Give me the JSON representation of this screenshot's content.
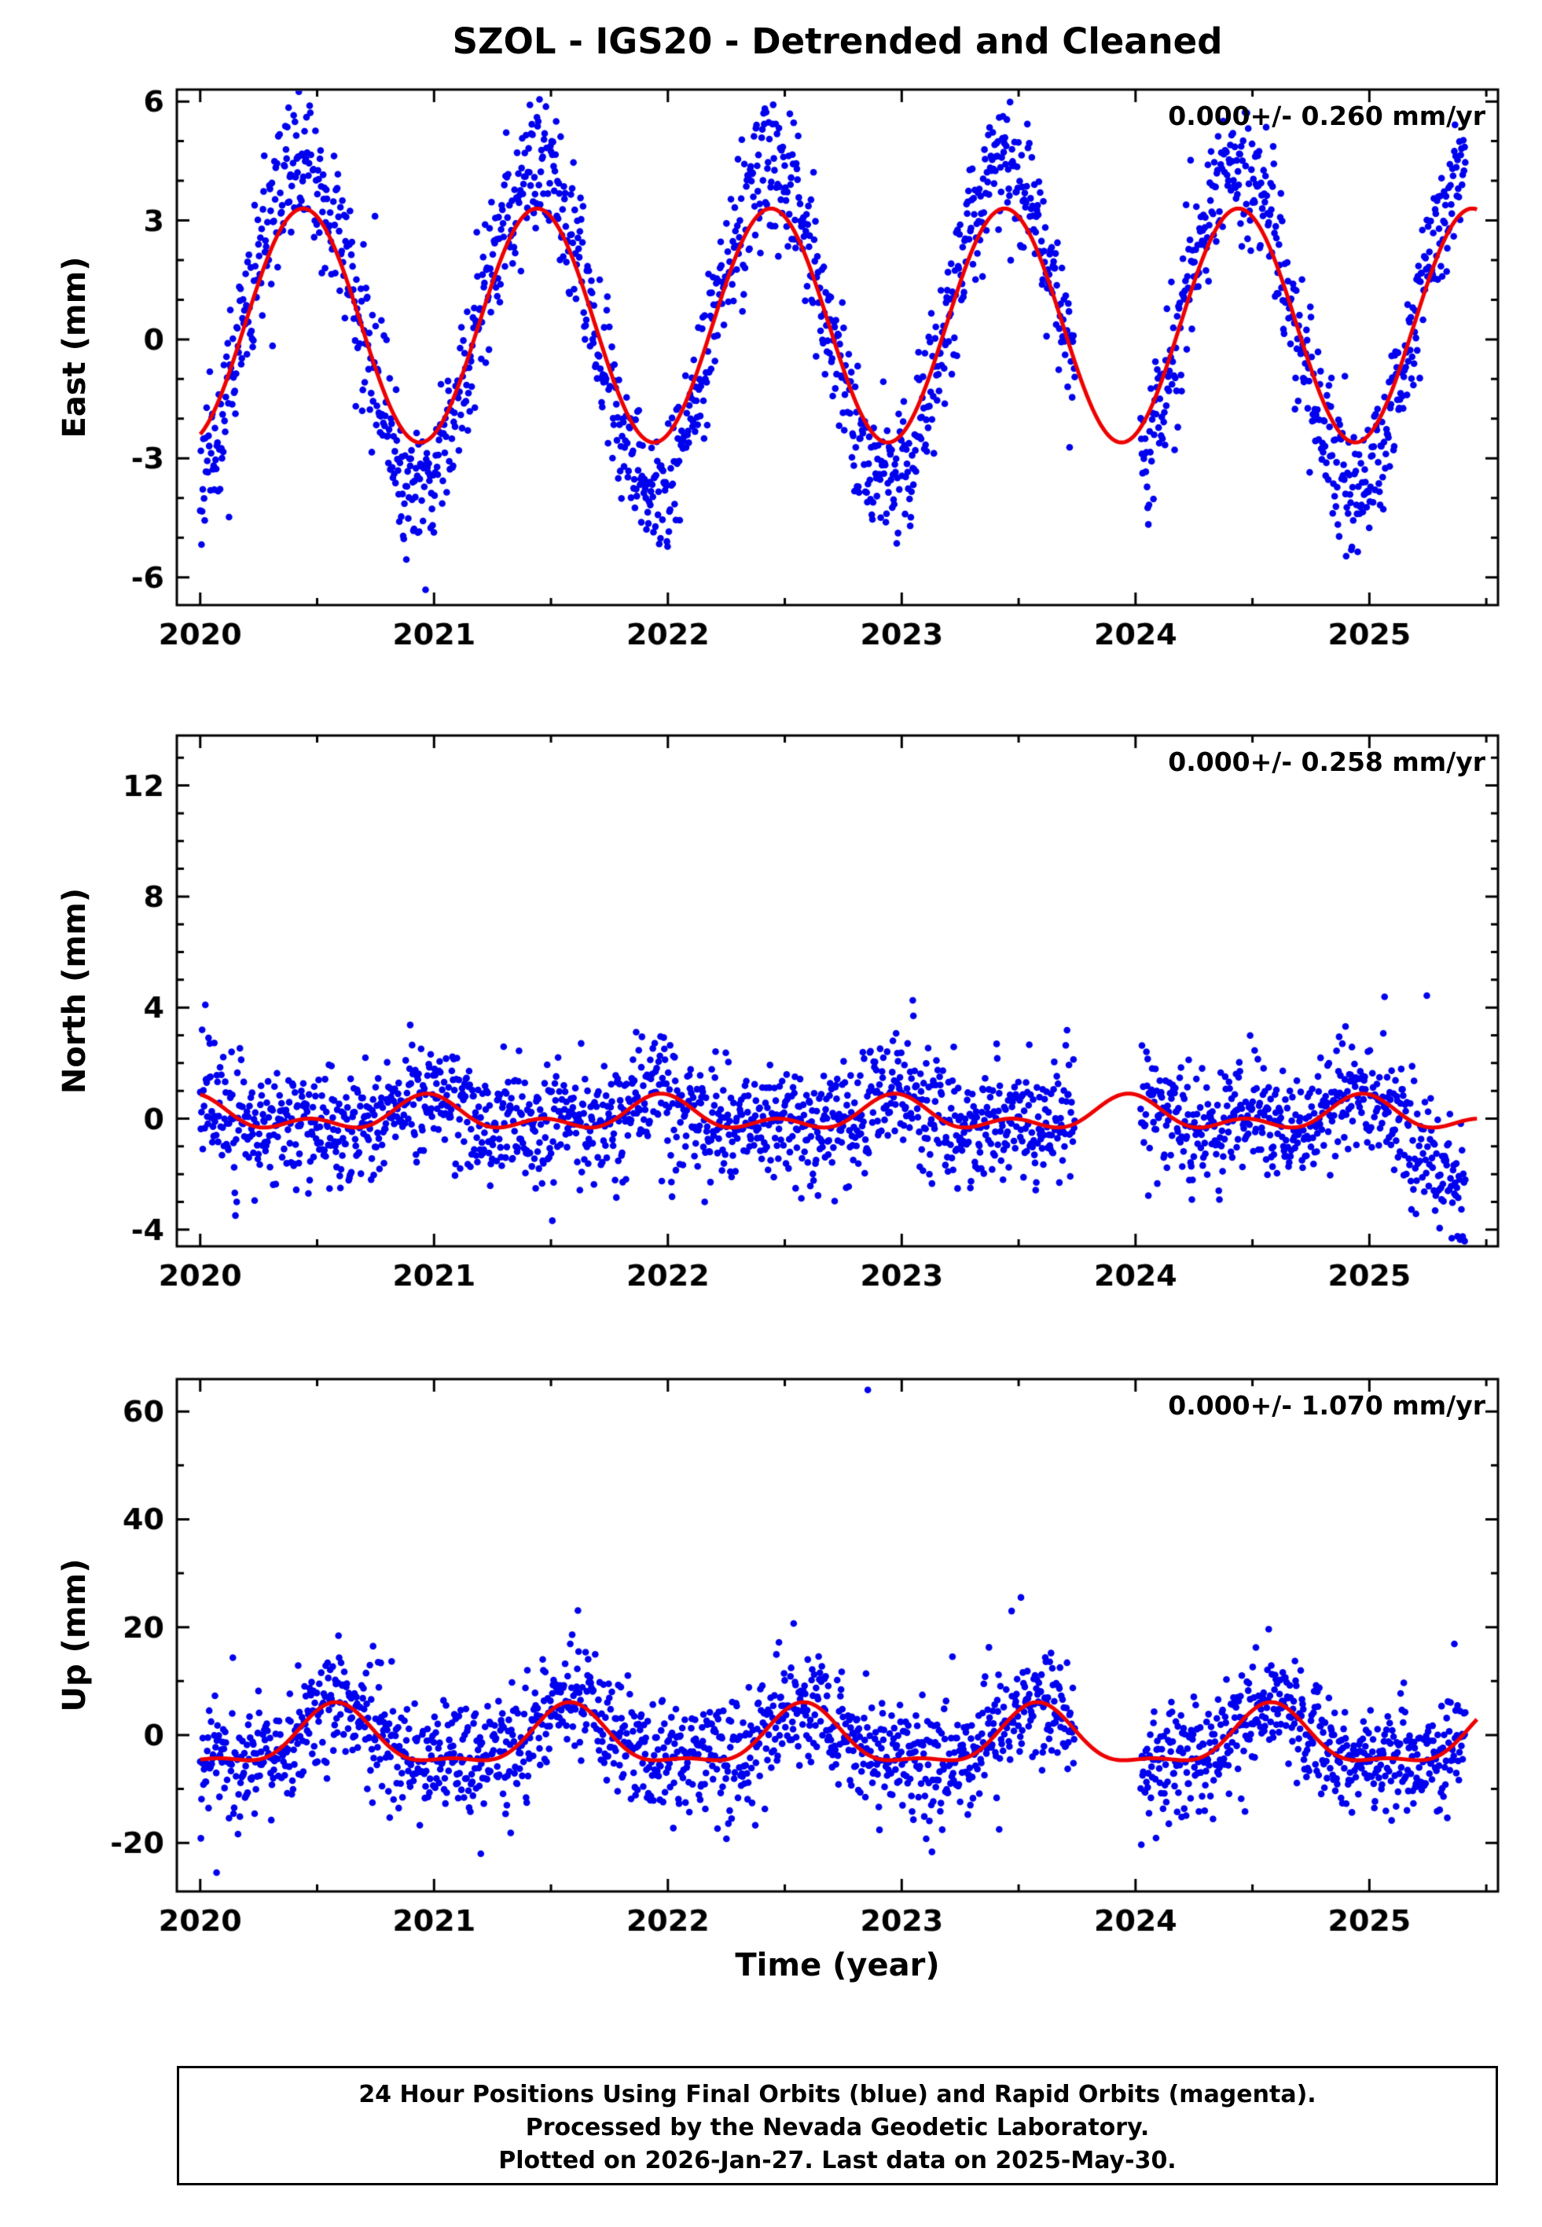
{
  "title": "SZOL - IGS20 - Detrended and Cleaned",
  "xlabel": "Time (year)",
  "footer": {
    "line1": "24 Hour Positions Using Final Orbits (blue) and Rapid Orbits (magenta).",
    "line2": "Processed by the Nevada Geodetic Laboratory.",
    "line3": "Plotted on 2026-Jan-27. Last data on 2025-May-30."
  },
  "colors": {
    "points": "#0000ee",
    "fit_line": "#ee0000",
    "frame": "#000000"
  },
  "chart_data": {
    "type": "scatter",
    "title": "SZOL - IGS20 - Detrended and Cleaned",
    "xlabel": "Time (year)",
    "legend": [
      {
        "name": "Final Orbits",
        "color": "blue"
      },
      {
        "name": "Rapid Orbits",
        "color": "magenta"
      }
    ],
    "x": {
      "lim": [
        2019.9,
        2025.55
      ],
      "ticks": [
        2020,
        2021,
        2022,
        2023,
        2024,
        2025
      ],
      "minor": 0.5,
      "data_start": 2020.0,
      "data_end": 2025.41,
      "gap": [
        2023.74,
        2024.02
      ],
      "cadence_days": 1
    },
    "panels": [
      {
        "id": "east",
        "ylabel": "East (mm)",
        "ylim": [
          -6.7,
          6.3
        ],
        "yticks": [
          -6,
          -3,
          0,
          3,
          6
        ],
        "yminor": 1,
        "annotation": "0.000+/- 0.260 mm/yr",
        "fit_curve": {
          "offset": 0.35,
          "harmonics": [
            {
              "amp": 2.95,
              "period": 1,
              "phase": 0.44
            }
          ]
        },
        "scatter": {
          "seasonal_scale": 1.35,
          "sigma": 0.85,
          "heavy_tail_prob": 0.02,
          "heavy_tail_scale": 2.0,
          "seed": 11
        }
      },
      {
        "id": "north",
        "ylabel": "North (mm)",
        "ylim": [
          -4.6,
          13.8
        ],
        "yticks": [
          -4,
          0,
          4,
          8,
          12
        ],
        "yminor": 1,
        "annotation": "0.000+/- 0.258 mm/yr",
        "fit_curve": {
          "offset": 0.1,
          "harmonics": [
            {
              "amp": 0.45,
              "period": 1,
              "phase": 0.97
            },
            {
              "amp": 0.35,
              "period": 0.5,
              "phase": 0.47
            }
          ]
        },
        "scatter": {
          "seasonal_scale": 1.0,
          "sigma": 1.05,
          "heavy_tail_prob": 0.02,
          "heavy_tail_scale": 1.6,
          "seed": 22,
          "end_droop": {
            "start": 2025.1,
            "total": -2.6,
            "extra_sigma": 0.7
          }
        }
      },
      {
        "id": "up",
        "ylabel": "Up (mm)",
        "ylim": [
          -29,
          66
        ],
        "yticks": [
          -20,
          0,
          20,
          40,
          60
        ],
        "yminor": 10,
        "annotation": "0.000+/- 1.070 mm/yr",
        "fit_curve": {
          "offset": -1.0,
          "harmonics": [
            {
              "amp": 5.2,
              "period": 1,
              "phase": 0.58
            },
            {
              "amp": 1.9,
              "period": 0.5,
              "phase": 0.58
            }
          ]
        },
        "scatter": {
          "seasonal_scale": 1.0,
          "sigma": 5.4,
          "heavy_tail_prob": 0.015,
          "heavy_tail_scale": 1.8,
          "seed": 33,
          "outliers": [
            [
              2022.855,
              64
            ],
            [
              2023.47,
              23
            ],
            [
              2020.07,
              -25.5
            ],
            [
              2021.2,
              -22
            ]
          ]
        }
      }
    ]
  }
}
